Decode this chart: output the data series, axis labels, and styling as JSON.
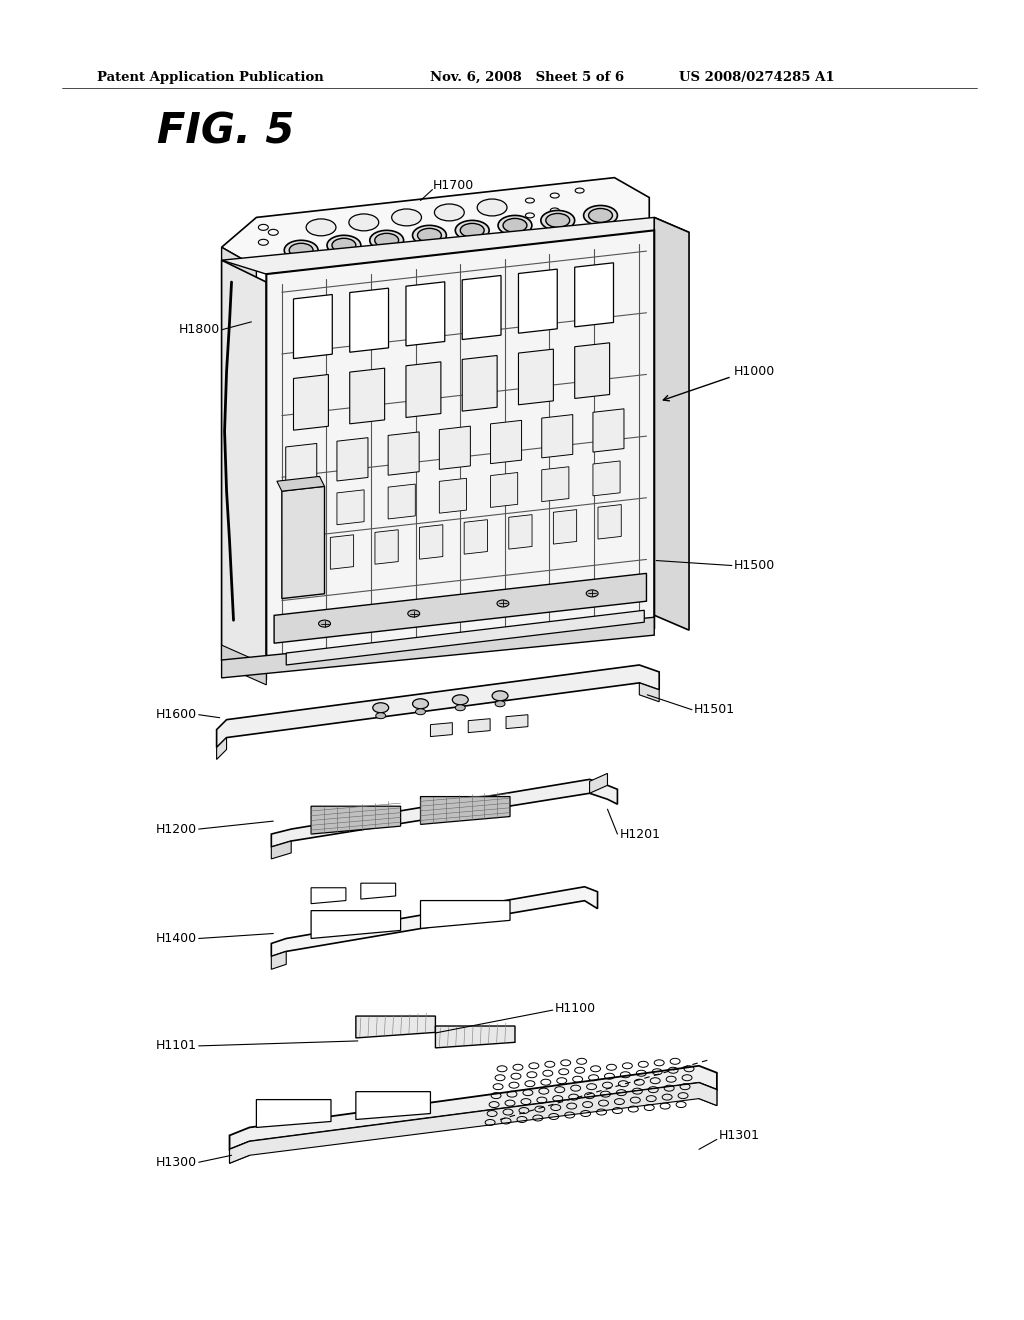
{
  "bg_color": "#ffffff",
  "header_left": "Patent Application Publication",
  "header_center": "Nov. 6, 2008   Sheet 5 of 6",
  "header_right": "US 2008/0274285 A1",
  "title": "FIG. 5",
  "label_fontsize": 9.0,
  "header_fontsize": 9.5,
  "title_fontsize": 30
}
